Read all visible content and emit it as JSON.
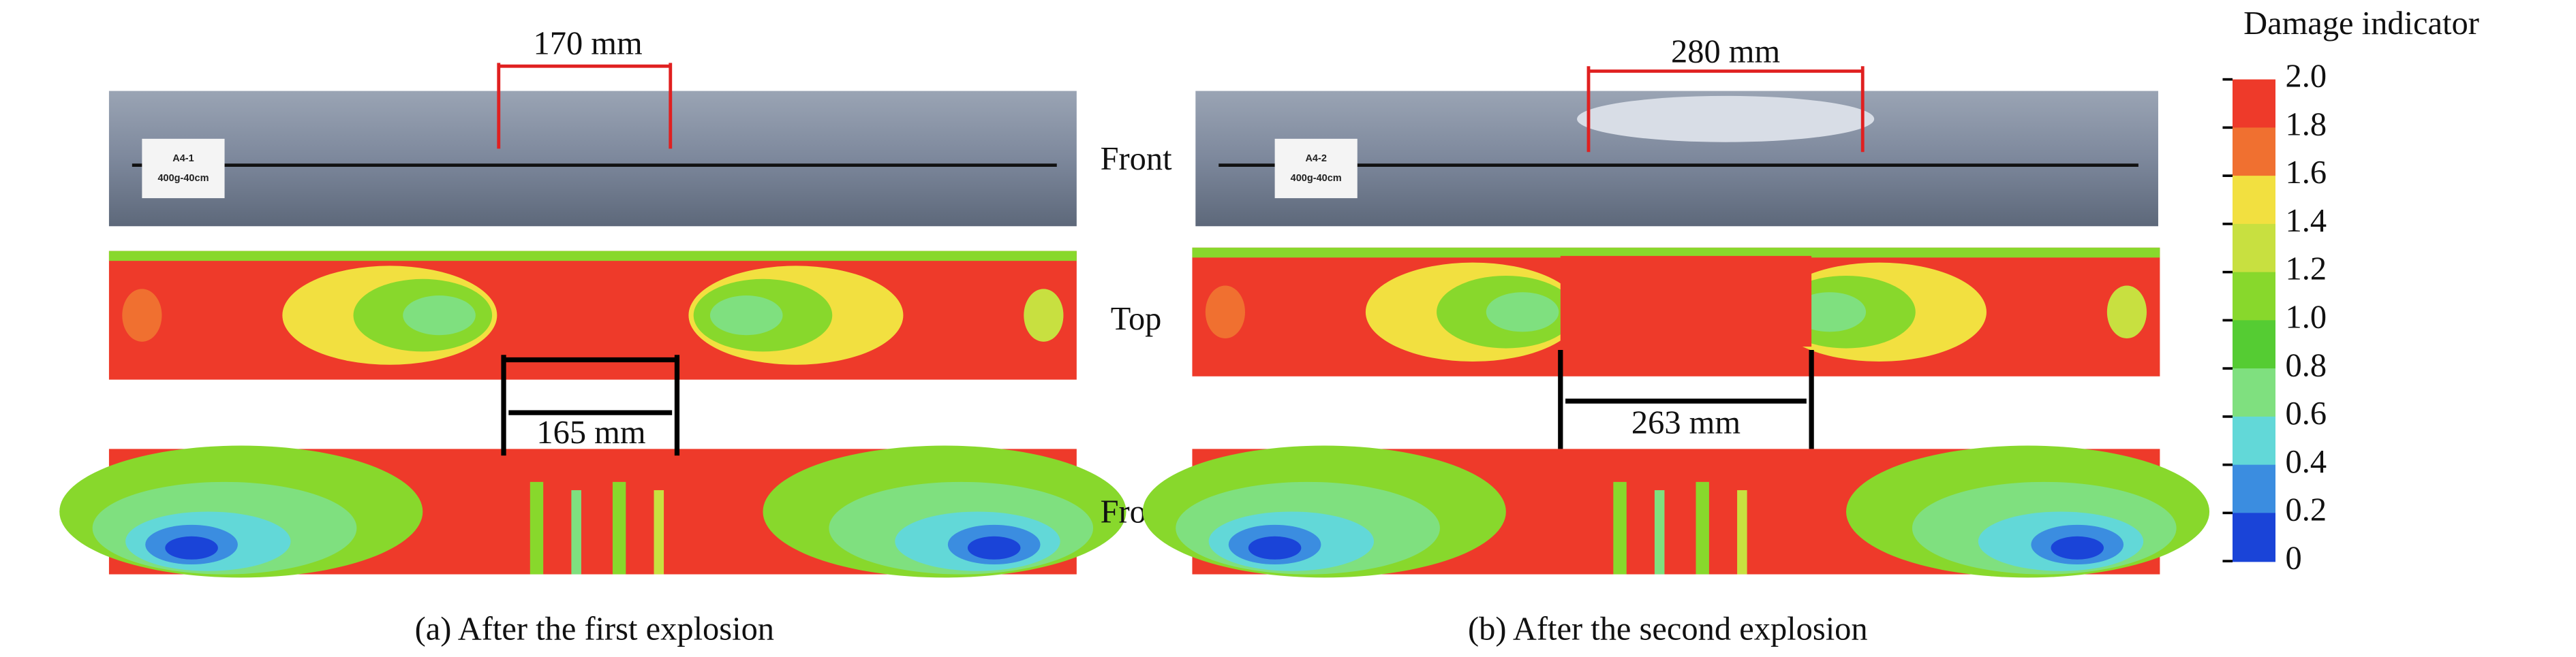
{
  "colorbar": {
    "title": "Damage indicator",
    "ticks": [
      "2.0",
      "1.8",
      "1.6",
      "1.4",
      "1.2",
      "1.0",
      "0.8",
      "0.6",
      "0.4",
      "0.2",
      "0"
    ]
  },
  "view_labels": [
    "Front",
    "Top",
    "Front"
  ],
  "panels": [
    {
      "caption": "(a) After the first explosion",
      "specimen": "A4-1",
      "load": "400g-40cm",
      "photo_width": "170 mm",
      "contour_width": "165 mm"
    },
    {
      "caption": "(b) After the second explosion",
      "specimen": "A4-2",
      "load": "400g-40cm",
      "photo_width": "280 mm",
      "contour_width": "263 mm"
    }
  ]
}
